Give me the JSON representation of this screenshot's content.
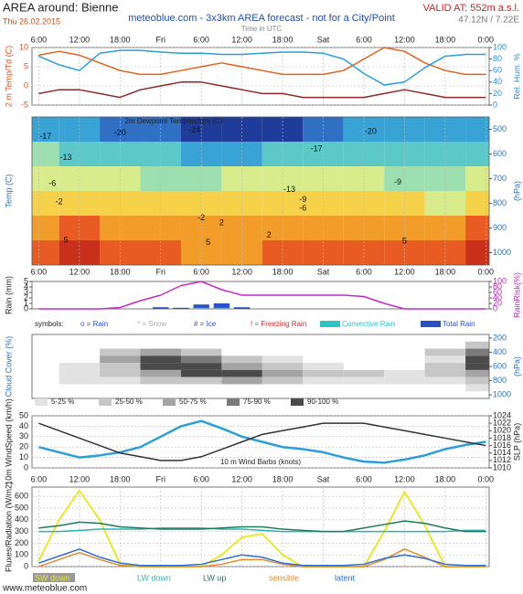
{
  "header": {
    "title": "AREA around: Bienne",
    "date": "Thu 26.02.2015",
    "source": "meteoblue.com - 3x3km AREA forecast - not for a City/Point",
    "valid": "VALID AT: 552m a.s.l.",
    "coords": "47.12N / 7.22E",
    "time_note": "Time in UTC"
  },
  "footer": "www.meteoblue.com",
  "chart_data": [
    {
      "type": "line",
      "ylabel": "2 m Temp/Td (C)",
      "y2label": "Rel. Hum. %",
      "xtick_side": "top",
      "grid": true,
      "xlim": [
        5,
        72.5
      ],
      "xticks": [
        {
          "value": 6,
          "label": "6:00"
        },
        {
          "value": 12,
          "label": "12:00"
        },
        {
          "value": 18,
          "label": "18:00"
        },
        {
          "value": 24,
          "label": "Fri"
        },
        {
          "value": 30,
          "label": "6:00"
        },
        {
          "value": 36,
          "label": "12:00"
        },
        {
          "value": 42,
          "label": "18:00"
        },
        {
          "value": 48,
          "label": "Sat"
        },
        {
          "value": 54,
          "label": "6:00"
        },
        {
          "value": 60,
          "label": "12:00"
        },
        {
          "value": 66,
          "label": "18:00"
        },
        {
          "value": 72,
          "label": "0:00"
        }
      ],
      "ylim": [
        -5,
        10
      ],
      "yticks": [
        -5,
        0,
        5,
        10
      ],
      "ytick_color": "#d9531e",
      "y2lim": [
        0,
        100
      ],
      "y2ticks": [
        0,
        20,
        40,
        60,
        80,
        100
      ],
      "y2tick_color": "#2a8fd6",
      "x": [
        6,
        9,
        12,
        15,
        18,
        21,
        24,
        27,
        30,
        33,
        36,
        39,
        42,
        45,
        48,
        51,
        54,
        57,
        60,
        63,
        66,
        69,
        72
      ],
      "series": [
        {
          "color": "#e0621e",
          "values": [
            8,
            9,
            8,
            6,
            4,
            3,
            3,
            4,
            5,
            6,
            5,
            4,
            3,
            3,
            3,
            4,
            7,
            10,
            9,
            6,
            4,
            3,
            3
          ]
        },
        {
          "color": "#8a2a2a",
          "values": [
            -2,
            -1,
            -1,
            -2,
            -3,
            -1,
            0,
            1,
            1,
            0,
            -1,
            -2,
            -2,
            -3,
            -3,
            -3,
            -3,
            -2,
            -1,
            -2,
            -3,
            -3,
            -3
          ]
        },
        {
          "color": "#2a9fd6",
          "axis": "y2",
          "values": [
            85,
            70,
            60,
            90,
            95,
            95,
            92,
            90,
            90,
            88,
            88,
            90,
            92,
            92,
            90,
            80,
            55,
            35,
            40,
            65,
            85,
            88,
            88
          ]
        }
      ]
    },
    {
      "type": "heatmap",
      "subtitle": "2m Dewpoint Temperature (C)",
      "ylabel": "Temp (C)",
      "y2label": "(hPa)",
      "xtick_side": "bottom",
      "grid": true,
      "xlim": [
        5,
        72.5
      ],
      "xticks": [
        {
          "value": 6,
          "label": "6:00"
        },
        {
          "value": 12,
          "label": "12:00"
        },
        {
          "value": 18,
          "label": "18:00"
        },
        {
          "value": 24,
          "label": "Fri"
        },
        {
          "value": 30,
          "label": "6:00"
        },
        {
          "value": 36,
          "label": "12:00"
        },
        {
          "value": 42,
          "label": "18:00"
        },
        {
          "value": 48,
          "label": "Sat"
        },
        {
          "value": 54,
          "label": "6:00"
        },
        {
          "value": 60,
          "label": "12:00"
        },
        {
          "value": 66,
          "label": "18:00"
        },
        {
          "value": 72,
          "label": "0:00"
        }
      ],
      "y2lim": [
        1050,
        450
      ],
      "y2ticks": [
        500,
        600,
        700,
        800,
        900,
        1000
      ],
      "y2tick_color": "#2a6fb0",
      "x": [
        6,
        12,
        18,
        24,
        30,
        36,
        42,
        48,
        54,
        60,
        66,
        72
      ],
      "levels": [
        500,
        600,
        700,
        800,
        900,
        1000
      ],
      "colors": [
        "#1f3c9a",
        "#2f6fc4",
        "#3aa3d6",
        "#5cc8c8",
        "#9edfb0",
        "#d9ec8c",
        "#f5d24a",
        "#f29d2a",
        "#e85b22",
        "#c9301b"
      ],
      "values": [
        [
          -17,
          -19,
          -20,
          -22,
          -24,
          -25,
          -24,
          -22,
          -19,
          -18,
          -18,
          -18
        ],
        [
          -12,
          -13,
          -14,
          -16,
          -18,
          -18,
          -16,
          -13,
          -13,
          -14,
          -14,
          -14
        ],
        [
          -7,
          -8,
          -9,
          -10,
          -10,
          -9,
          -8,
          -6,
          -9,
          -11,
          -10,
          -9
        ],
        [
          -3,
          -4,
          -5,
          -3,
          -3,
          -2,
          -3,
          -2,
          -4,
          -5,
          -6,
          -4
        ],
        [
          1,
          2,
          1,
          0,
          -1,
          -1,
          0,
          1,
          0,
          0,
          1,
          3
        ],
        [
          4,
          6,
          4,
          2,
          1,
          1,
          2,
          4,
          2,
          2,
          5,
          7
        ]
      ],
      "contour_labels": [
        {
          "x": 7,
          "level": 530,
          "value": -17
        },
        {
          "x": 18,
          "level": 515,
          "value": -20
        },
        {
          "x": 29,
          "level": 505,
          "value": -24
        },
        {
          "x": 55,
          "level": 510,
          "value": -20
        },
        {
          "x": 47,
          "level": 580,
          "value": -17
        },
        {
          "x": 10,
          "level": 615,
          "value": -13
        },
        {
          "x": 43,
          "level": 745,
          "value": -13
        },
        {
          "x": 45,
          "level": 785,
          "value": -9
        },
        {
          "x": 59,
          "level": 715,
          "value": -9
        },
        {
          "x": 8,
          "level": 720,
          "value": -6
        },
        {
          "x": 45,
          "level": 820,
          "value": -6
        },
        {
          "x": 9,
          "level": 795,
          "value": -2
        },
        {
          "x": 30,
          "level": 860,
          "value": -2
        },
        {
          "x": 33,
          "level": 880,
          "value": 2
        },
        {
          "x": 40,
          "level": 930,
          "value": 2
        },
        {
          "x": 10,
          "level": 950,
          "value": 5
        },
        {
          "x": 31,
          "level": 960,
          "value": 5
        },
        {
          "x": 60,
          "level": 955,
          "value": 5
        }
      ]
    },
    {
      "type": "bar",
      "ylabel": "Rain (mm)",
      "y2label": "RainRisk(%)",
      "grid": false,
      "xlim": [
        5,
        72.5
      ],
      "ylim": [
        0,
        5
      ],
      "yticks": [
        0,
        1,
        2,
        3,
        4,
        5
      ],
      "ytick_color": "#222",
      "y2lim": [
        0,
        100
      ],
      "y2ticks": [
        0,
        20,
        40,
        60,
        80,
        100
      ],
      "y2tick_color": "#b02ab0",
      "x": [
        6,
        9,
        12,
        15,
        18,
        21,
        24,
        27,
        30,
        33,
        36,
        39,
        42,
        45,
        48,
        51,
        54,
        57,
        60,
        63,
        66,
        69,
        72
      ],
      "series": [
        {
          "name": "Total Rain",
          "type": "bar",
          "color": "#2a4fc9",
          "values": [
            0,
            0,
            0,
            0,
            0,
            0,
            0.3,
            0.2,
            0.8,
            1,
            0.3,
            0,
            0,
            0,
            0,
            0,
            0,
            0,
            0,
            0,
            0,
            0,
            0
          ]
        },
        {
          "name": "Convective Rain",
          "type": "bar",
          "color": "#2ec4c4",
          "values": [
            0,
            0,
            0,
            0,
            0,
            0,
            0,
            0,
            0.2,
            0.2,
            0,
            0,
            0,
            0,
            0,
            0,
            0,
            0,
            0,
            0,
            0,
            0,
            0
          ]
        },
        {
          "type": "line",
          "axis": "y2",
          "color": "#c52ac5",
          "values": [
            0,
            0,
            0,
            0,
            5,
            30,
            50,
            85,
            100,
            70,
            50,
            50,
            50,
            50,
            50,
            50,
            45,
            20,
            0,
            0,
            0,
            0,
            0
          ]
        }
      ],
      "symbols": [
        {
          "label": "symbols:",
          "color": "#222"
        },
        {
          "label": "o = Rain",
          "color": "#2a4fc9"
        },
        {
          "label": "* = Snow",
          "color": "#aaaaaa"
        },
        {
          "label": "# = Ice",
          "color": "#2a4fc9"
        },
        {
          "label": "! = Freezing Rain",
          "color": "#e02a2a"
        }
      ]
    },
    {
      "type": "heatmap",
      "ylabel": "Cloud Cover (%)",
      "y2label": "(hPa)",
      "grid": false,
      "xlim": [
        5,
        72.5
      ],
      "y2lim": [
        1050,
        150
      ],
      "y2ticks": [
        200,
        400,
        600,
        800,
        1000
      ],
      "y2tick_color": "#2a6fb0",
      "x": [
        6,
        12,
        18,
        24,
        30,
        36,
        42,
        48,
        54,
        60,
        66,
        72
      ],
      "levels": [
        300,
        400,
        500,
        600,
        700,
        800,
        900
      ],
      "bins": [
        5,
        25,
        50,
        75,
        90,
        100
      ],
      "legend": [
        {
          "label": "5-25 %",
          "color": "#e2e2e2"
        },
        {
          "label": "25-50 %",
          "color": "#c6c6c6"
        },
        {
          "label": "50-75 %",
          "color": "#a4a4a4"
        },
        {
          "label": "75-90 %",
          "color": "#7a7a7a"
        },
        {
          "label": "90-100 %",
          "color": "#4a4a4a"
        }
      ],
      "values": [
        [
          0,
          0,
          0,
          0,
          0,
          0,
          0,
          0,
          0,
          0,
          0,
          40
        ],
        [
          0,
          0,
          30,
          60,
          40,
          0,
          0,
          0,
          0,
          0,
          30,
          80
        ],
        [
          0,
          0,
          60,
          95,
          80,
          50,
          20,
          0,
          0,
          0,
          20,
          95
        ],
        [
          0,
          10,
          50,
          95,
          95,
          70,
          40,
          20,
          0,
          0,
          30,
          95
        ],
        [
          0,
          20,
          40,
          70,
          95,
          92,
          60,
          40,
          30,
          20,
          30,
          70
        ],
        [
          0,
          10,
          20,
          30,
          50,
          60,
          40,
          20,
          10,
          10,
          20,
          50
        ],
        [
          0,
          0,
          0,
          0,
          0,
          0,
          0,
          0,
          0,
          0,
          0,
          20
        ]
      ]
    },
    {
      "type": "line",
      "ylabel": "10m WindSpeed (km/h)",
      "y2label": "SLP (hPa)",
      "annotation": "10 m Wind Barbs (knots)",
      "grid": true,
      "xlim": [
        5,
        72.5
      ],
      "ylim": [
        0,
        50
      ],
      "yticks": [
        0,
        10,
        20,
        30,
        40,
        50
      ],
      "ytick_color": "#222",
      "y2lim": [
        1010,
        1024
      ],
      "y2ticks": [
        1010,
        1012,
        1014,
        1016,
        1018,
        1020,
        1022,
        1024
      ],
      "y2tick_color": "#222",
      "x": [
        6,
        9,
        12,
        15,
        18,
        21,
        24,
        27,
        30,
        33,
        36,
        39,
        42,
        45,
        48,
        51,
        54,
        57,
        60,
        63,
        66,
        69,
        72
      ],
      "series": [
        {
          "color": "#2a9fd6",
          "width": 2.5,
          "values": [
            20,
            15,
            10,
            12,
            15,
            20,
            30,
            40,
            45,
            38,
            30,
            25,
            20,
            18,
            15,
            10,
            6,
            5,
            8,
            12,
            18,
            22,
            25
          ]
        },
        {
          "color": "#333333",
          "axis": "y2",
          "values": [
            1022,
            1020,
            1018,
            1016,
            1014,
            1013,
            1012,
            1012,
            1013,
            1015,
            1017,
            1019,
            1020,
            1021,
            1022,
            1022,
            1022,
            1021,
            1020,
            1019,
            1018,
            1017,
            1016
          ]
        }
      ]
    },
    {
      "type": "line",
      "ylabel": "Fluxes/Radiation (W/m2)",
      "xtick_side": "top",
      "grid": true,
      "legend": "bottom",
      "xlim": [
        5,
        72.5
      ],
      "xticks": [
        {
          "value": 6,
          "label": "6:00"
        },
        {
          "value": 12,
          "label": "12:00"
        },
        {
          "value": 18,
          "label": "18:00"
        },
        {
          "value": 24,
          "label": "Fri"
        },
        {
          "value": 30,
          "label": "6:00"
        },
        {
          "value": 36,
          "label": "12:00"
        },
        {
          "value": 42,
          "label": "18:00"
        },
        {
          "value": 48,
          "label": "Sat"
        },
        {
          "value": 54,
          "label": "6:00"
        },
        {
          "value": 60,
          "label": "12:00"
        },
        {
          "value": 66,
          "label": "18:00"
        },
        {
          "value": 72,
          "label": "0:00"
        }
      ],
      "ylim": [
        0,
        680
      ],
      "yticks": [
        0,
        100,
        200,
        300,
        400,
        500,
        600
      ],
      "ytick_color": "#222",
      "x": [
        6,
        9,
        12,
        15,
        18,
        21,
        24,
        27,
        30,
        33,
        36,
        39,
        42,
        45,
        48,
        51,
        54,
        57,
        60,
        63,
        66,
        69,
        72
      ],
      "series": [
        {
          "name": "SW down",
          "color": "#e8e82a",
          "width": 2,
          "values": [
            50,
            400,
            650,
            400,
            20,
            0,
            0,
            0,
            0,
            100,
            250,
            280,
            100,
            0,
            0,
            0,
            0,
            300,
            640,
            350,
            0,
            0,
            0
          ]
        },
        {
          "name": "LW down",
          "color": "#2bb3b3",
          "values": [
            300,
            300,
            310,
            320,
            320,
            320,
            330,
            330,
            330,
            320,
            320,
            310,
            300,
            300,
            300,
            300,
            300,
            300,
            300,
            300,
            300,
            310,
            310
          ]
        },
        {
          "name": "LW up",
          "color": "#1f7a5c",
          "values": [
            330,
            350,
            380,
            370,
            340,
            330,
            320,
            320,
            320,
            330,
            340,
            340,
            320,
            310,
            300,
            300,
            330,
            360,
            390,
            370,
            330,
            300,
            300
          ]
        },
        {
          "name": "sensible",
          "color": "#e88a2a",
          "values": [
            0,
            60,
            120,
            60,
            10,
            0,
            0,
            0,
            0,
            20,
            60,
            60,
            20,
            0,
            0,
            0,
            0,
            60,
            150,
            80,
            0,
            0,
            0
          ]
        },
        {
          "name": "latent",
          "color": "#2a6fd6",
          "values": [
            30,
            90,
            150,
            80,
            30,
            10,
            10,
            10,
            20,
            60,
            100,
            80,
            30,
            10,
            10,
            10,
            20,
            70,
            100,
            70,
            20,
            10,
            10
          ]
        }
      ]
    }
  ]
}
